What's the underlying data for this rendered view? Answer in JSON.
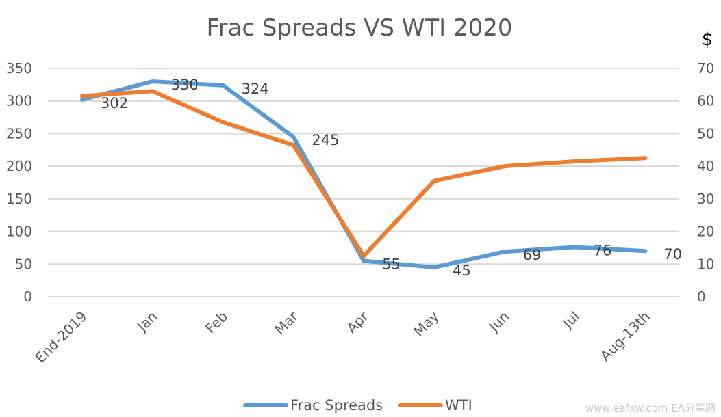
{
  "chart_data": {
    "type": "line",
    "title": "Frac Spreads VS WTI 2020",
    "categories": [
      "End-2019",
      "Jan",
      "Feb",
      "Mar",
      "Apr",
      "May",
      "Jun",
      "Jul",
      "Aug-13th"
    ],
    "y_left": {
      "ticks": [
        "0",
        "50",
        "100",
        "150",
        "200",
        "250",
        "300",
        "350"
      ],
      "ylim": [
        0,
        350
      ]
    },
    "y_right": {
      "unit_label": "$",
      "ticks": [
        "0",
        "10",
        "20",
        "30",
        "40",
        "50",
        "60",
        "70"
      ],
      "ylim": [
        0,
        70
      ]
    },
    "grid": true,
    "legend_position": "bottom",
    "series": [
      {
        "name": "Frac Spreads",
        "axis": "left",
        "color": "#5B9BD5",
        "values": [
          302,
          330,
          324,
          245,
          55,
          45,
          69,
          76,
          70
        ],
        "data_labels": [
          "302",
          "330",
          "324",
          "245",
          "55",
          "45",
          "69",
          "76",
          "70"
        ]
      },
      {
        "name": "WTI",
        "axis": "right",
        "color": "#ED7D31",
        "values": [
          61.5,
          63,
          53.5,
          46.5,
          12.5,
          35.5,
          40,
          41.5,
          42.5
        ]
      }
    ]
  },
  "watermark": "www.eafxw.com  EA分享网"
}
